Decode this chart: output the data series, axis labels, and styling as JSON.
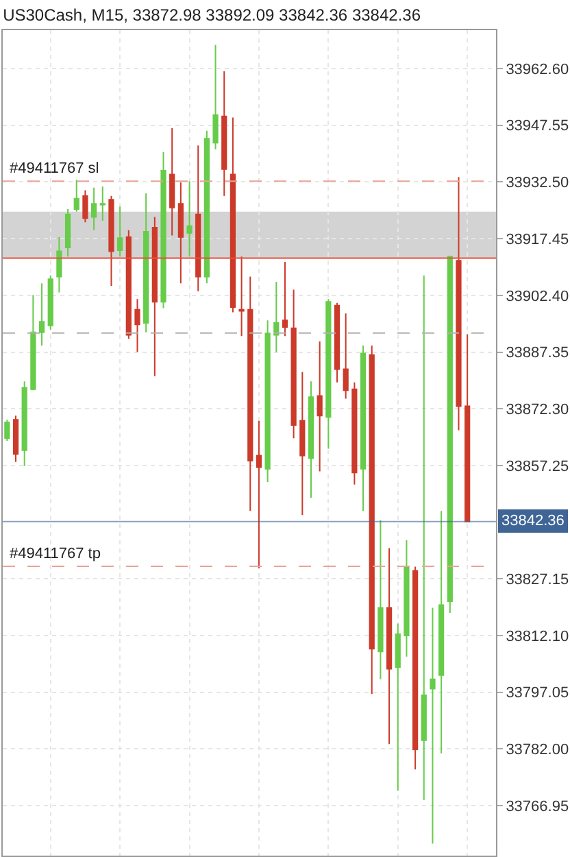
{
  "chart_data": {
    "type": "candlestick",
    "title": "US30Cash, M15, 33872.98 33892.09 33842.36 33842.36",
    "categories": [
      null,
      null,
      null,
      null,
      null,
      null,
      null,
      null,
      null,
      null,
      null,
      null,
      null,
      null,
      null,
      null,
      null,
      null,
      null,
      null,
      null,
      null,
      null,
      null,
      null,
      null,
      null,
      null,
      null,
      null,
      null,
      null,
      null,
      null,
      null,
      null,
      null,
      null,
      null,
      null,
      null,
      null,
      null,
      null,
      null,
      null,
      null,
      null,
      null,
      null,
      null,
      null,
      null,
      null
    ],
    "ohlc": [
      [
        33864.5,
        33869.4,
        33863.8,
        33868.7
      ],
      [
        33869.4,
        33870.5,
        33858.2,
        33860.3
      ],
      [
        33861.3,
        33879.6,
        33857.1,
        33877.9
      ],
      [
        33877.5,
        33902.5,
        33877.2,
        33892.6
      ],
      [
        33892.6,
        33905.6,
        33889.1,
        33895.4
      ],
      [
        33894.4,
        33907.7,
        33893.3,
        33906.7
      ],
      [
        33907.4,
        33917.9,
        33903.2,
        33914.1
      ],
      [
        33915.1,
        33925.3,
        33912.7,
        33923.9
      ],
      [
        33925.3,
        33933.1,
        33924.6,
        33928.1
      ],
      [
        33928.8,
        33930.3,
        33921.8,
        33922.9
      ],
      [
        33923.2,
        33931.0,
        33919.7,
        33926.7
      ],
      [
        33926.5,
        33931.3,
        33922.2,
        33926.7
      ],
      [
        33927.8,
        33928.8,
        33904.9,
        33914.1
      ],
      [
        33914.4,
        33926.0,
        33912.7,
        33917.6
      ],
      [
        33917.9,
        33919.7,
        33890.9,
        33891.9
      ],
      [
        33898.6,
        33901.4,
        33887.4,
        33894.7
      ],
      [
        33895.1,
        33929.5,
        33892.6,
        33919.3
      ],
      [
        33920.4,
        33923.2,
        33881.0,
        33900.7
      ],
      [
        33900.7,
        33940.4,
        33899.0,
        33935.5
      ],
      [
        33934.5,
        33946.8,
        33918.3,
        33925.7
      ],
      [
        33926.7,
        33932.4,
        33905.6,
        33917.9
      ],
      [
        33919.0,
        33932.7,
        33912.7,
        33920.8
      ],
      [
        33923.9,
        33942.2,
        33903.5,
        33907.4
      ],
      [
        33907.4,
        33946.1,
        33905.6,
        33944.0
      ],
      [
        33942.9,
        33968.9,
        33941.2,
        33950.3
      ],
      [
        33949.9,
        33961.9,
        33928.8,
        33935.9
      ],
      [
        33934.5,
        33949.6,
        33897.9,
        33899.3
      ],
      [
        33898.6,
        33912.7,
        33891.6,
        33898.3
      ],
      [
        33898.6,
        33907.4,
        33845.2,
        33858.5
      ],
      [
        33859.9,
        33869.1,
        33830.0,
        33856.8
      ],
      [
        33856.4,
        33895.8,
        33852.9,
        33892.3
      ],
      [
        33891.9,
        33906.0,
        33887.4,
        33895.1
      ],
      [
        33895.8,
        33911.3,
        33891.6,
        33894.0
      ],
      [
        33893.7,
        33903.9,
        33864.5,
        33868.0
      ],
      [
        33869.1,
        33882.1,
        33844.1,
        33859.9
      ],
      [
        33859.2,
        33879.6,
        33848.7,
        33875.4
      ],
      [
        33875.7,
        33890.2,
        33855.7,
        33870.5
      ],
      [
        33870.1,
        33901.4,
        33861.7,
        33900.7
      ],
      [
        33899.7,
        33900.4,
        33879.3,
        33882.8
      ],
      [
        33882.8,
        33897.6,
        33875.0,
        33877.2
      ],
      [
        33877.5,
        33879.3,
        33852.2,
        33855.4
      ],
      [
        33856.4,
        33889.1,
        33845.2,
        33887.0
      ],
      [
        33886.6,
        33889.1,
        33796.6,
        33808.6
      ],
      [
        33807.9,
        33842.7,
        33800.5,
        33819.5
      ],
      [
        33819.5,
        33835.3,
        33783.3,
        33803.3
      ],
      [
        33803.7,
        33815.3,
        33771.0,
        33812.5
      ],
      [
        33812.1,
        33837.4,
        33806.5,
        33830.4
      ],
      [
        33829.3,
        33830.4,
        33776.6,
        33781.9
      ],
      [
        33784.3,
        33907.7,
        33768.5,
        33796.3
      ],
      [
        33798.0,
        33819.5,
        33756.9,
        33800.5
      ],
      [
        33801.6,
        33845.2,
        33780.8,
        33820.2
      ],
      [
        33821.2,
        33912.9,
        33818.1,
        33912.7
      ],
      [
        33911.6,
        33933.8,
        33866.6,
        33873.0
      ],
      [
        33872.98,
        33892.09,
        33842.36,
        33842.36
      ]
    ],
    "colors": [
      "#66cc4a",
      "#cc3a2a",
      "#66cc4a",
      "#66cc4a",
      "#66cc4a",
      "#66cc4a",
      "#66cc4a",
      "#66cc4a",
      "#66cc4a",
      "#cc3a2a",
      "#66cc4a",
      "#66cc4a",
      "#cc3a2a",
      "#66cc4a",
      "#cc3a2a",
      "#cc3a2a",
      "#66cc4a",
      "#cc3a2a",
      "#66cc4a",
      "#cc3a2a",
      "#cc3a2a",
      "#66cc4a",
      "#cc3a2a",
      "#66cc4a",
      "#66cc4a",
      "#cc3a2a",
      "#cc3a2a",
      "#cc3a2a",
      "#cc3a2a",
      "#cc3a2a",
      "#66cc4a",
      "#66cc4a",
      "#cc3a2a",
      "#cc3a2a",
      "#cc3a2a",
      "#66cc4a",
      "#cc3a2a",
      "#66cc4a",
      "#cc3a2a",
      "#cc3a2a",
      "#cc3a2a",
      "#66cc4a",
      "#cc3a2a",
      "#66cc4a",
      "#cc3a2a",
      "#66cc4a",
      "#66cc4a",
      "#cc3a2a",
      "#66cc4a",
      "#66cc4a",
      "#66cc4a",
      "#66cc4a",
      "#cc3a2a",
      "#cc3a2a"
    ],
    "ylim": [
      33753.7,
      33972.8
    ],
    "yticks": [
      {
        "value": 33962.6,
        "label": "33962.60"
      },
      33947.55,
      {
        "value": 33932.5,
        "label": "33932.50"
      },
      33917.45,
      {
        "value": 33902.4,
        "label": "33902.40"
      },
      33887.35,
      {
        "value": 33872.3,
        "label": "33872.30"
      },
      33857.25,
      33827.15,
      {
        "value": 33812.1,
        "label": "33812.10"
      },
      33797.05,
      {
        "value": 33782.0,
        "label": "33782.00"
      },
      33766.95
    ],
    "grid": true,
    "tick_labels": "y",
    "bands": [
      {
        "axis": "y",
        "from": 33912.3,
        "to": 33924.6,
        "color": "#d3d3d3"
      }
    ],
    "ref_lines": [
      {
        "axis": "y",
        "value": 33932.7,
        "label": "#49411767 sl",
        "color": "#e8a598",
        "line_style": "dashed"
      },
      {
        "axis": "y",
        "value": 33892.4,
        "color": "#b0b0b0",
        "line_style": "dashed"
      },
      {
        "axis": "y",
        "value": 33912.3,
        "color": "#e8503c",
        "line_style": "solid"
      },
      {
        "axis": "y",
        "value": 33830.5,
        "label": "#49411767 tp",
        "color": "#e8a598",
        "line_style": "dashed"
      },
      {
        "axis": "y",
        "value": 33842.36,
        "label": "33842.36",
        "color": "#3f6496",
        "line_style": "solid"
      }
    ]
  }
}
